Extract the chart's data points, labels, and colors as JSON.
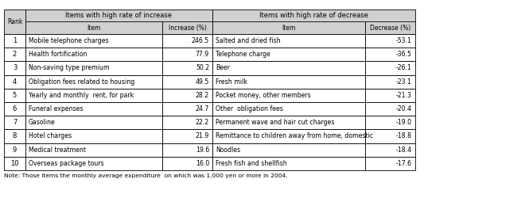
{
  "ranks": [
    1,
    2,
    3,
    4,
    5,
    6,
    7,
    8,
    9,
    10
  ],
  "increase_items": [
    "Mobile telephone charges",
    "Health fortification",
    "Non-saving type premium",
    "Obligation fees related to housing",
    "Yearly and monthly  rent, for park",
    "Funeral expenses",
    "Gasoline",
    "Hotel charges",
    "Medical treatment",
    "Overseas package tours"
  ],
  "increase_values": [
    "246.5",
    "77.9",
    "50.2",
    "49.5",
    "28.2",
    "24.7",
    "22.2",
    "21.9",
    "19.6",
    "16.0"
  ],
  "decrease_items": [
    "Salted and dried fish",
    "Telephone charge",
    "Beer",
    "Fresh milk",
    "Pocket money, other members",
    "Other  obligation fees",
    "Permanent wave and hair cut charges",
    "Remittance to children away from home, domestic",
    "Noodles",
    "Fresh fish and shellfish"
  ],
  "decrease_values": [
    "-53.1",
    "-36.5",
    "-26.1",
    "-23.1",
    "-21.3",
    "-20.4",
    "-19.0",
    "-18.8",
    "-18.4",
    "-17.6"
  ],
  "header1": "Items with high rate of increase",
  "header2": "Items with high rate of decrease",
  "col_rank": "Rank",
  "col_item_inc": "Item",
  "col_pct_inc": "Increase (%)",
  "col_item_dec": "Item",
  "col_pct_dec": "Decrease (%)",
  "note": "Note: Those items the monthly average expenditure  on which was 1,000 yen or more in 2004.",
  "bg_color": "#ffffff",
  "hdr_fill": "#d0d0d0",
  "border_color": "#000000"
}
